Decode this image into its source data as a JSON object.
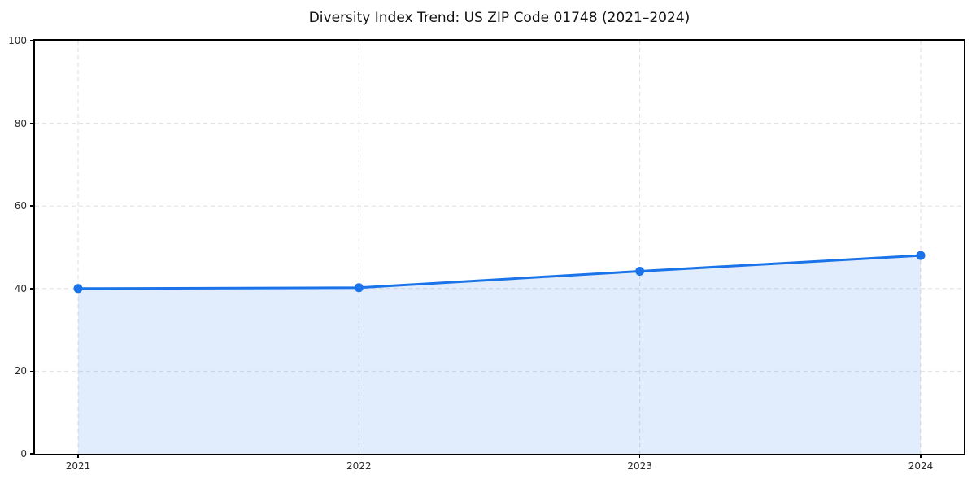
{
  "chart_data": {
    "type": "area",
    "title": "Diversity Index Trend: US ZIP Code 01748 (2021–2024)",
    "categories": [
      "2021",
      "2022",
      "2023",
      "2024"
    ],
    "series": [
      {
        "name": "Diversity Index",
        "values": [
          40.0,
          40.2,
          44.2,
          48.0
        ]
      }
    ],
    "xlabel": "",
    "ylabel": "",
    "ylim": [
      0,
      100
    ],
    "yticks": [
      0,
      20,
      40,
      60,
      80,
      100
    ],
    "grid": true,
    "grid_style": "dashed",
    "legend_position": "none",
    "marker": "circle",
    "colors": {
      "line": "#1a73e8",
      "marker": "#1a73e8",
      "fill": "rgba(26,115,232,0.13)",
      "grid": "#dedede",
      "spine": "#000000",
      "tick_text": "#2b2b2b",
      "title_text": "#111111",
      "background": "#ffffff"
    }
  }
}
